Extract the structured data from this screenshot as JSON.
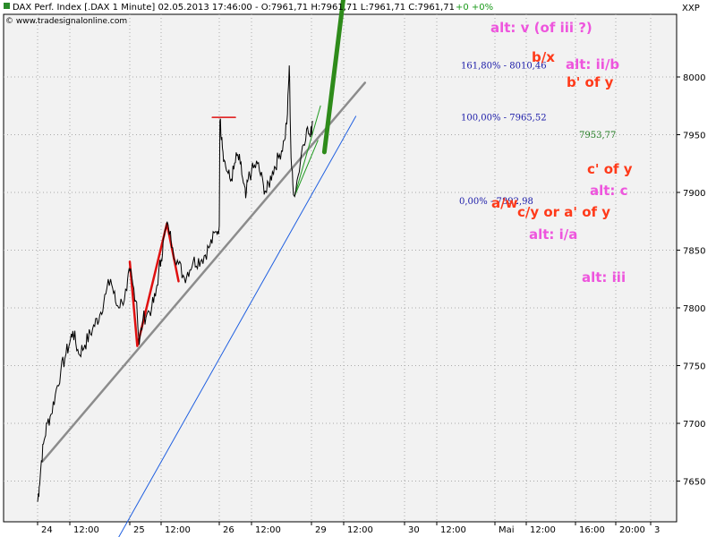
{
  "header": {
    "title": "DAX Perf. Index [.DAX  1 Minute] 02.05.2013 17:46:00 - O:7961,71 H:7961,71 L:7961,71 C:7961,71",
    "change": "+0 +0%",
    "copyright": "© www.tradesignalonline.com",
    "symbol": "XXP"
  },
  "colors": {
    "price": "#000000",
    "trendline": "#8c8c8c",
    "blue_line": "#1f5fe0",
    "red_pattern": "#e01010",
    "green_thin": "#1f9a1f",
    "green_thick": "#2e8b1a",
    "annotation_red": "#ff3a1a",
    "annotation_pink": "#ee55dd",
    "fib_text": "#1a1aa8",
    "grid": "#a9a9a9"
  },
  "chart_data": {
    "type": "line",
    "title": "DAX Perf. Index [.DAX 1 Minute]",
    "x_ticks": [
      "24",
      "12:00",
      "25",
      "12:00",
      "26",
      "12:00",
      "29",
      "12:00",
      "30",
      "12:00",
      "Mai",
      "12:00",
      "16:00",
      "20:00",
      "3"
    ],
    "y_ticks": [
      7650,
      7700,
      7750,
      7800,
      7850,
      7900,
      7950,
      8000
    ],
    "ylim": [
      7620,
      8060
    ],
    "grid": true,
    "price_path": [
      [
        0.0,
        7632
      ],
      [
        0.05,
        7645
      ],
      [
        0.12,
        7668
      ],
      [
        0.2,
        7685
      ],
      [
        0.3,
        7700
      ],
      [
        0.42,
        7708
      ],
      [
        0.55,
        7725
      ],
      [
        0.72,
        7745
      ],
      [
        0.88,
        7760
      ],
      [
        1.0,
        7770
      ],
      [
        1.05,
        7780
      ],
      [
        1.15,
        7760
      ],
      [
        1.25,
        7768
      ],
      [
        1.38,
        7782
      ],
      [
        1.5,
        7794
      ],
      [
        1.6,
        7812
      ],
      [
        1.68,
        7825
      ],
      [
        1.78,
        7802
      ],
      [
        1.87,
        7805
      ],
      [
        1.95,
        7815
      ],
      [
        2.0,
        7832
      ],
      [
        2.1,
        7820
      ],
      [
        2.22,
        7805
      ],
      [
        2.3,
        7768
      ],
      [
        2.42,
        7790
      ],
      [
        2.55,
        7795
      ],
      [
        2.7,
        7800
      ],
      [
        2.82,
        7810
      ],
      [
        2.92,
        7830
      ],
      [
        3.0,
        7842
      ],
      [
        3.05,
        7862
      ],
      [
        3.12,
        7872
      ],
      [
        3.2,
        7852
      ],
      [
        3.3,
        7838
      ],
      [
        3.4,
        7826
      ],
      [
        3.55,
        7840
      ],
      [
        3.7,
        7842
      ],
      [
        3.82,
        7852
      ],
      [
        3.95,
        7866
      ],
      [
        4.0,
        7871
      ],
      [
        4.02,
        7962
      ],
      [
        4.08,
        7948
      ],
      [
        4.15,
        7928
      ],
      [
        4.25,
        7918
      ],
      [
        4.35,
        7910
      ],
      [
        4.45,
        7920
      ],
      [
        4.55,
        7932
      ],
      [
        4.65,
        7925
      ],
      [
        4.75,
        7908
      ],
      [
        4.82,
        7895
      ],
      [
        4.9,
        7912
      ],
      [
        5.0,
        7918
      ],
      [
        5.1,
        7925
      ],
      [
        5.2,
        7906
      ],
      [
        5.25,
        7900
      ],
      [
        5.35,
        7918
      ],
      [
        5.45,
        7930
      ],
      [
        5.55,
        7945
      ],
      [
        5.6,
        7968
      ],
      [
        5.63,
        8010
      ],
      [
        5.66,
        7930
      ],
      [
        5.7,
        7898
      ],
      [
        5.78,
        7915
      ],
      [
        5.85,
        7940
      ],
      [
        5.92,
        7955
      ],
      [
        5.98,
        7948
      ],
      [
        6.03,
        7962
      ]
    ],
    "overlays": {
      "main_trendline": [
        [
          0.15,
          7667
        ],
        [
          7.35,
          7995
        ]
      ],
      "blue_line": [
        [
          1.8,
          7600
        ],
        [
          7.2,
          7966
        ]
      ],
      "red_zigzag": [
        [
          2.0,
          7840
        ],
        [
          2.24,
          7767
        ],
        [
          3.1,
          7873
        ],
        [
          3.3,
          7823
        ]
      ],
      "red_hline": [
        [
          3.88,
          7965
        ],
        [
          4.5,
          7965
        ]
      ],
      "green_thin_1": [
        [
          5.72,
          7897
        ],
        [
          6.2,
          7945
        ]
      ],
      "green_thin_2": [
        [
          5.72,
          7897
        ],
        [
          6.28,
          7975
        ]
      ],
      "green_thick": [
        [
          6.4,
          7935
        ],
        [
          7.0,
          8070
        ]
      ]
    },
    "fib_levels": [
      {
        "label": "161,80% - 8010,46",
        "value": 8010.46
      },
      {
        "label": "100,00% - 7965,52",
        "value": 7965.52
      },
      {
        "label": "0,00% - 7892,98",
        "value": 7892.98
      }
    ],
    "last_value_label": "7953,77",
    "annotations": [
      {
        "text": "alt: v (of iii ?)",
        "color": "pink"
      },
      {
        "text": "b/x",
        "color": "red"
      },
      {
        "text": "alt: ii/b",
        "color": "pink"
      },
      {
        "text": "b' of y",
        "color": "red"
      },
      {
        "text": "c' of y",
        "color": "red"
      },
      {
        "text": "alt: c",
        "color": "pink"
      },
      {
        "text": "a/w",
        "color": "red"
      },
      {
        "text": "c/y or a' of y",
        "color": "red"
      },
      {
        "text": "alt: i/a",
        "color": "pink"
      },
      {
        "text": "alt: iii",
        "color": "pink"
      }
    ]
  }
}
